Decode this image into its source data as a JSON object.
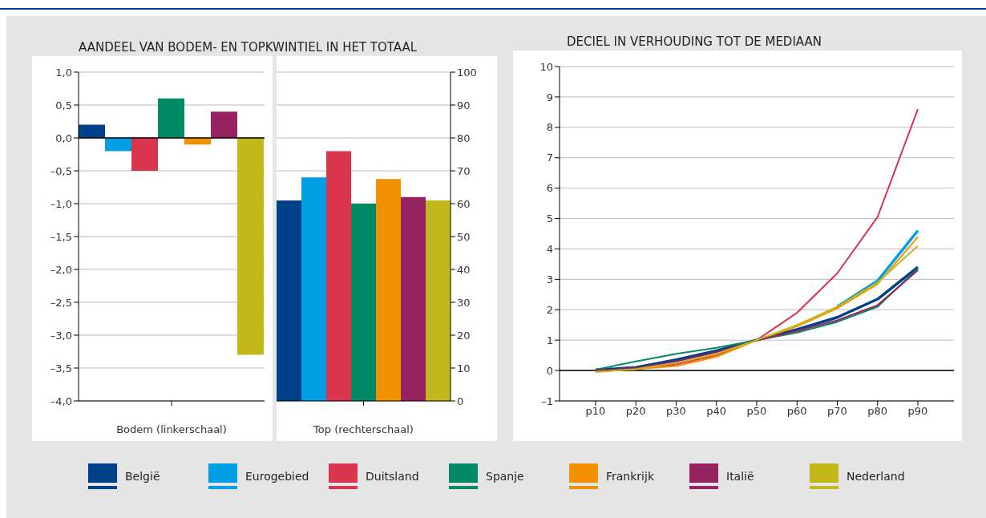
{
  "chart_data": [
    {
      "type": "bar",
      "title": "AANDEEL VAN BODEM- EN TOPKWINTIEL IN HET TOTAAL",
      "xlabel": "Bodem (linkerschaal)",
      "categories": [
        null
      ],
      "ylim": [
        -4,
        1
      ],
      "yticks": [
        {
          "value": -4,
          "label": "–4,0"
        },
        {
          "value": -3.5,
          "label": "–3,5"
        },
        {
          "value": -3,
          "label": "–3,0"
        },
        {
          "value": -2.5,
          "label": "–2,5"
        },
        {
          "value": -2,
          "label": "–2,0"
        },
        {
          "value": -1.5,
          "label": "–1,5"
        },
        {
          "value": -1,
          "label": "–1,0"
        },
        {
          "value": -0.5,
          "label": "–0,5"
        },
        {
          "value": 0,
          "label": "0,0"
        },
        {
          "value": 0.5,
          "label": "0,5"
        },
        {
          "value": 1,
          "label": "1,0"
        }
      ],
      "grid": "y",
      "legend": "bottom",
      "ref_lines": [
        {
          "axis": "y",
          "value": 0
        }
      ],
      "series": [
        {
          "name": "België",
          "color": "#00428a",
          "values": [
            0.2
          ]
        },
        {
          "name": "Eurogebied",
          "color": "#009fe3",
          "values": [
            -0.2
          ]
        },
        {
          "name": "Duitsland",
          "color": "#d9354c",
          "values": [
            -0.5
          ]
        },
        {
          "name": "Spanje",
          "color": "#008b66",
          "values": [
            0.6
          ]
        },
        {
          "name": "Frankrijk",
          "color": "#f39200",
          "values": [
            -0.1
          ]
        },
        {
          "name": "Italië",
          "color": "#952360",
          "values": [
            0.4
          ]
        },
        {
          "name": "Nederland",
          "color": "#c3b81a",
          "values": [
            -3.3
          ]
        }
      ]
    },
    {
      "type": "bar",
      "xlabel": "Top (rechterschaal)",
      "categories": [
        null
      ],
      "ylim": [
        0,
        100
      ],
      "yticks": [
        0,
        10,
        20,
        30,
        40,
        50,
        60,
        70,
        80,
        90,
        100
      ],
      "grid": "y",
      "series": [
        {
          "color": "#00428a",
          "values": [
            61
          ]
        },
        {
          "color": "#009fe3",
          "values": [
            68
          ]
        },
        {
          "color": "#d9354c",
          "values": [
            76
          ]
        },
        {
          "color": "#008b66",
          "values": [
            60
          ]
        },
        {
          "color": "#f39200",
          "values": [
            67.5
          ]
        },
        {
          "color": "#952360",
          "values": [
            62
          ]
        },
        {
          "color": "#c3b81a",
          "values": [
            61
          ]
        }
      ]
    },
    {
      "type": "line",
      "title": "DECIEL IN VERHOUDING TOT DE MEDIAAN",
      "categories": [
        "p10",
        "p20",
        "p30",
        "p40",
        "p50",
        "p60",
        "p70",
        "p80",
        "p90"
      ],
      "ylim": [
        -1,
        10
      ],
      "yticks": [
        {
          "value": -1,
          "label": "–1"
        },
        0,
        1,
        2,
        3,
        4,
        5,
        6,
        7,
        8,
        9,
        10
      ],
      "grid": "y",
      "marker": "none",
      "line_style": "solid",
      "ref_lines": [
        {
          "axis": "y",
          "value": 0
        }
      ],
      "series": [
        {
          "color": "#00428a",
          "values": [
            0.02,
            0.1,
            0.35,
            0.65,
            1.0,
            1.35,
            1.75,
            2.35,
            3.4
          ]
        },
        {
          "color": "#009fe3",
          "values": [
            null,
            null,
            null,
            null,
            null,
            null,
            2.1,
            2.95,
            4.6
          ]
        },
        {
          "color": "#d9354c",
          "values": [
            0,
            0.05,
            0.2,
            0.5,
            1.0,
            1.9,
            3.2,
            5.05,
            8.6
          ]
        },
        {
          "color": "#008b66",
          "values": [
            0.03,
            0.3,
            0.55,
            0.75,
            1.0,
            1.25,
            1.6,
            2.1,
            3.35
          ]
        },
        {
          "color": "#f39200",
          "values": [
            -0.03,
            0.05,
            0.15,
            0.45,
            1.0,
            1.45,
            2.05,
            2.85,
            4.4
          ]
        },
        {
          "color": "#952360",
          "values": [
            0,
            0.08,
            0.3,
            0.6,
            1.0,
            1.3,
            1.65,
            2.15,
            3.3
          ]
        },
        {
          "color": "#c3b81a",
          "values": [
            -0.05,
            0.05,
            0.25,
            0.55,
            1.0,
            1.5,
            2.1,
            2.9,
            4.1
          ]
        }
      ]
    }
  ]
}
